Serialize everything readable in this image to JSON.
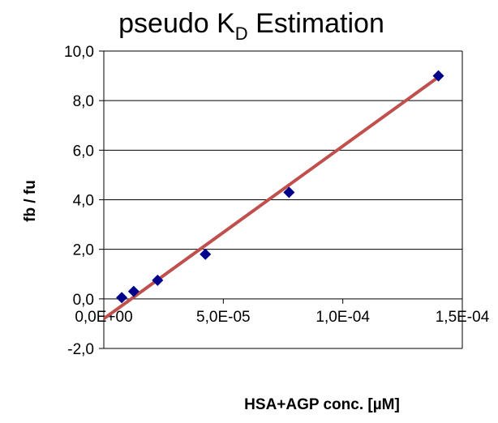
{
  "chart_data": {
    "type": "scatter",
    "title": "pseudo K",
    "title_subscript": "D",
    "title_suffix": " Estimation",
    "xlabel": "HSA+AGP conc. [µM]",
    "ylabel": "fb / fu",
    "xlim": [
      0,
      0.00015
    ],
    "ylim": [
      -2,
      10
    ],
    "x_ticks": [
      {
        "value": 0,
        "label": "0,0E+00"
      },
      {
        "value": 5e-05,
        "label": "5,0E-05"
      },
      {
        "value": 0.0001,
        "label": "1,0E-04"
      },
      {
        "value": 0.00015,
        "label": "1,5E-04"
      }
    ],
    "y_ticks": [
      {
        "value": -2,
        "label": "-2,0"
      },
      {
        "value": 0,
        "label": "0,0"
      },
      {
        "value": 2,
        "label": "2,0"
      },
      {
        "value": 4,
        "label": "4,0"
      },
      {
        "value": 6,
        "label": "6,0"
      },
      {
        "value": 8,
        "label": "8,0"
      },
      {
        "value": 10,
        "label": "10,0"
      }
    ],
    "grid": true,
    "series": [
      {
        "type": "scatter",
        "color": "#00008b",
        "marker": "diamond",
        "x": [
          7.5e-06,
          1.25e-05,
          2.25e-05,
          4.25e-05,
          7.75e-05,
          0.00014
        ],
        "y": [
          0.05,
          0.3,
          0.75,
          1.8,
          4.3,
          9.0
        ]
      },
      {
        "type": "trendline",
        "color": "#c0504d",
        "x": [
          0,
          0.00014
        ],
        "y": [
          -0.8,
          8.95
        ]
      }
    ]
  }
}
